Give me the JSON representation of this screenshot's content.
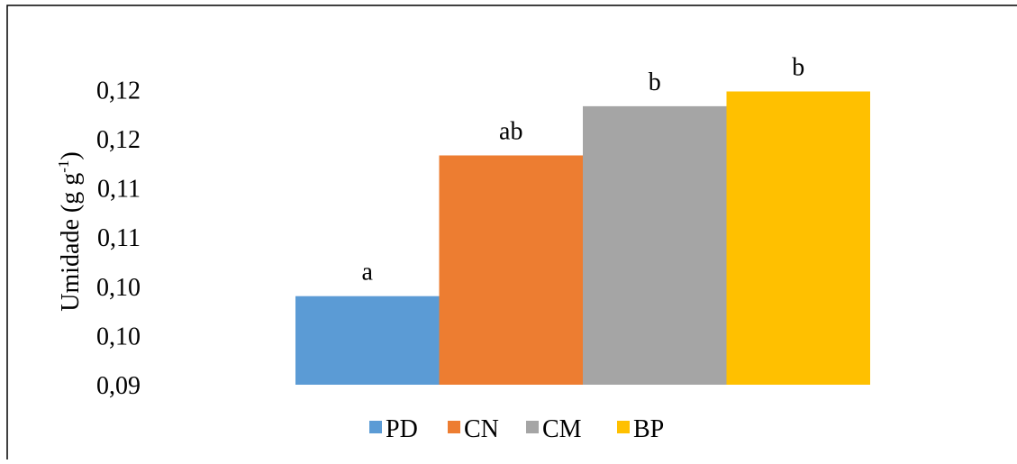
{
  "chart_data": {
    "type": "bar",
    "categories": [
      "PD",
      "CN",
      "CM",
      "BP"
    ],
    "series": [
      {
        "name": "PD",
        "color": "#5B9BD5",
        "value": 0.099,
        "label": "a"
      },
      {
        "name": "CN",
        "color": "#ED7D31",
        "value": 0.1133,
        "label": "ab"
      },
      {
        "name": "CM",
        "color": "#A5A5A5",
        "value": 0.1183,
        "label": "b"
      },
      {
        "name": "BP",
        "color": "#FFC000",
        "value": 0.1198,
        "label": "b"
      }
    ],
    "ylabel": {
      "main": "Umidade (g g",
      "sup": "-1",
      "close": ")"
    },
    "ylim": [
      0.09,
      0.1236
    ],
    "ytick_values": [
      0.09,
      0.095,
      0.1,
      0.105,
      0.11,
      0.115,
      0.12
    ],
    "ytick_labels": [
      "0,09",
      "0,10",
      "0,10",
      "0,11",
      "0,11",
      "0,12",
      "0,12"
    ],
    "grid": false,
    "legend_position": "bottom"
  }
}
